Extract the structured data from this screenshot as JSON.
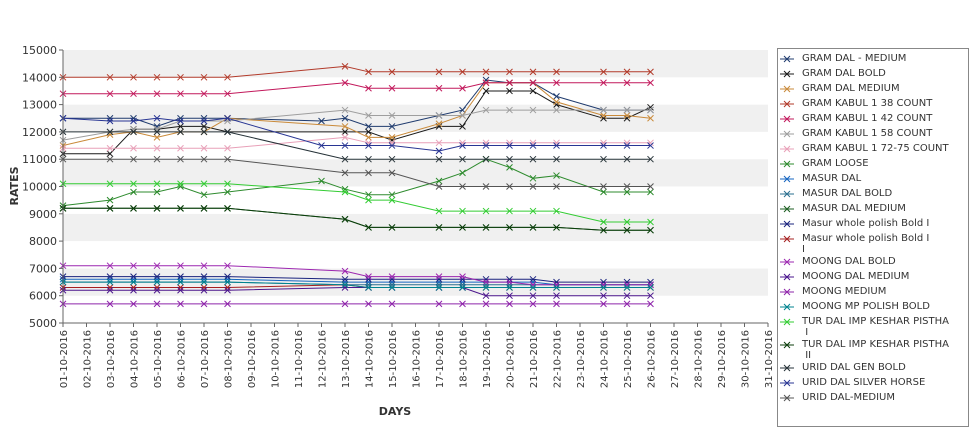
{
  "chart_data": {
    "type": "line",
    "title": "",
    "xlabel": "DAYS",
    "ylabel": "RATES",
    "ylim": [
      5000,
      15000
    ],
    "yticks": [
      5000,
      6000,
      7000,
      8000,
      9000,
      10000,
      11000,
      12000,
      13000,
      14000,
      15000
    ],
    "grid": "alternating horizontal bands",
    "legend_position": "right",
    "x": [
      "01-10-2016",
      "02-10-2016",
      "03-10-2016",
      "04-10-2016",
      "05-10-2016",
      "06-10-2016",
      "07-10-2016",
      "08-10-2016",
      "09-10-2016",
      "10-10-2016",
      "11-10-2016",
      "12-10-2016",
      "13-10-2016",
      "14-10-2016",
      "15-10-2016",
      "16-10-2016",
      "17-10-2016",
      "18-10-2016",
      "19-10-2016",
      "20-10-2016",
      "21-10-2016",
      "22-10-2016",
      "23-10-2016",
      "24-10-2016",
      "25-10-2016",
      "26-10-2016",
      "27-10-2016",
      "28-10-2016",
      "29-10-2016",
      "30-10-2016",
      "31-10-2016"
    ],
    "series": [
      {
        "name": "GRAM DAL - MEDIUM",
        "color": "#1f3b6e",
        "values": [
          12500,
          null,
          12500,
          12500,
          12200,
          12500,
          12500,
          12500,
          null,
          null,
          null,
          12400,
          12500,
          12200,
          12200,
          null,
          12600,
          12800,
          13900,
          13800,
          13800,
          13300,
          null,
          12800,
          12800,
          12800,
          null,
          null,
          null,
          null,
          null
        ]
      },
      {
        "name": "GRAM DAL BOLD",
        "color": "#1a1a1a",
        "values": [
          11200,
          null,
          11200,
          12100,
          12100,
          12200,
          12200,
          12000,
          null,
          null,
          null,
          null,
          12000,
          12000,
          11700,
          null,
          12200,
          12200,
          13500,
          13500,
          13500,
          13000,
          null,
          12500,
          12500,
          12900,
          null,
          null,
          null,
          null,
          null
        ]
      },
      {
        "name": "GRAM DAL MEDIUM",
        "color": "#c98a3a",
        "values": [
          11500,
          null,
          11900,
          12000,
          11800,
          12000,
          12000,
          12500,
          null,
          null,
          null,
          null,
          12200,
          11800,
          11800,
          null,
          12300,
          12600,
          13800,
          13800,
          13800,
          13100,
          null,
          12600,
          12600,
          12500,
          null,
          null,
          null,
          null,
          null
        ]
      },
      {
        "name": "GRAM KABUL 1 38 COUNT",
        "color": "#b23a2a",
        "values": [
          14000,
          null,
          14000,
          14000,
          14000,
          14000,
          14000,
          14000,
          null,
          null,
          null,
          null,
          14400,
          14200,
          14200,
          null,
          14200,
          14200,
          14200,
          14200,
          14200,
          14200,
          null,
          14200,
          14200,
          14200,
          null,
          null,
          null,
          null,
          null
        ]
      },
      {
        "name": "GRAM KABUL 1 42 COUNT",
        "color": "#c2185b",
        "values": [
          13400,
          null,
          13400,
          13400,
          13400,
          13400,
          13400,
          13400,
          null,
          null,
          null,
          null,
          13800,
          13600,
          13600,
          null,
          13600,
          13600,
          13800,
          13800,
          13800,
          13800,
          null,
          13800,
          13800,
          13800,
          null,
          null,
          null,
          null,
          null
        ]
      },
      {
        "name": "GRAM KABUL 1 58 COUNT",
        "color": "#9e9e9e",
        "values": [
          11700,
          null,
          12000,
          12100,
          12100,
          12400,
          12400,
          12400,
          null,
          null,
          null,
          null,
          12800,
          12600,
          12600,
          null,
          12600,
          12600,
          12800,
          12800,
          12800,
          12800,
          null,
          12800,
          12800,
          12800,
          null,
          null,
          null,
          null,
          null
        ]
      },
      {
        "name": "GRAM KABUL 1 72-75 COUNT",
        "color": "#e8a0b8",
        "values": [
          11400,
          null,
          11400,
          11400,
          11400,
          11400,
          11400,
          11400,
          null,
          null,
          null,
          null,
          11800,
          11600,
          11600,
          null,
          11600,
          11600,
          11600,
          11600,
          11600,
          11600,
          null,
          11600,
          11600,
          11600,
          null,
          null,
          null,
          null,
          null
        ]
      },
      {
        "name": "GRAM LOOSE",
        "color": "#2e8b2e",
        "values": [
          9300,
          null,
          9500,
          9800,
          9800,
          10000,
          9700,
          9800,
          null,
          null,
          null,
          10200,
          9900,
          9700,
          9700,
          null,
          10200,
          10500,
          11000,
          10700,
          10300,
          10400,
          null,
          9800,
          9800,
          9800,
          null,
          null,
          null,
          null,
          null
        ]
      },
      {
        "name": "MASUR DAL",
        "color": "#1565c0",
        "values": [
          6600,
          null,
          6600,
          6600,
          6600,
          6600,
          6600,
          6600,
          null,
          null,
          null,
          null,
          6500,
          6500,
          6500,
          null,
          6500,
          6500,
          6500,
          6500,
          6500,
          6400,
          null,
          6400,
          6400,
          6400,
          null,
          null,
          null,
          null,
          null
        ]
      },
      {
        "name": "MASUR DAL BOLD",
        "color": "#2a6f8f",
        "values": [
          6500,
          null,
          6500,
          6500,
          6500,
          6500,
          6500,
          6500,
          null,
          null,
          null,
          null,
          6400,
          6400,
          6400,
          null,
          6400,
          6400,
          6400,
          6400,
          6400,
          6400,
          null,
          6400,
          6400,
          6400,
          null,
          null,
          null,
          null,
          null
        ]
      },
      {
        "name": "MASUR DAL MEDIUM",
        "color": "#1b5e20",
        "values": [
          9200,
          null,
          9200,
          9200,
          9200,
          9200,
          9200,
          9200,
          null,
          null,
          null,
          null,
          8800,
          8500,
          8500,
          null,
          8500,
          8500,
          8500,
          8500,
          8500,
          8500,
          null,
          8400,
          8400,
          8400,
          null,
          null,
          null,
          null,
          null
        ]
      },
      {
        "name": "Masur whole polish Bold I",
        "color": "#1a237e",
        "values": [
          6700,
          null,
          6700,
          6700,
          6700,
          6700,
          6700,
          6700,
          null,
          null,
          null,
          null,
          6600,
          6600,
          6600,
          null,
          6600,
          6600,
          6600,
          6600,
          6600,
          6500,
          null,
          6500,
          6500,
          6500,
          null,
          null,
          null,
          null,
          null
        ]
      },
      {
        "name": "Masur whole polish Bold I\nI",
        "color": "#a52020",
        "values": [
          6300,
          null,
          6300,
          6300,
          6300,
          6300,
          6300,
          6300,
          null,
          null,
          null,
          null,
          6400,
          6300,
          6300,
          null,
          6300,
          6300,
          6300,
          6300,
          6300,
          6300,
          null,
          6300,
          6300,
          6300,
          null,
          null,
          null,
          null,
          null
        ]
      },
      {
        "name": "MOONG DAL BOLD",
        "color": "#9c27b0",
        "values": [
          7100,
          null,
          7100,
          7100,
          7100,
          7100,
          7100,
          7100,
          null,
          null,
          null,
          null,
          6900,
          6700,
          6700,
          null,
          6700,
          6700,
          6500,
          6500,
          6400,
          6400,
          null,
          6400,
          6400,
          6400,
          null,
          null,
          null,
          null,
          null
        ]
      },
      {
        "name": "MOONG DAL MEDIUM",
        "color": "#4a148c",
        "values": [
          6200,
          null,
          6200,
          6200,
          6200,
          6200,
          6200,
          6200,
          null,
          null,
          null,
          null,
          6300,
          6300,
          6300,
          null,
          6300,
          6300,
          6000,
          6000,
          6000,
          6000,
          null,
          6000,
          6000,
          6000,
          null,
          null,
          null,
          null,
          null
        ]
      },
      {
        "name": "MOONG MEDIUM",
        "color": "#8e24aa",
        "values": [
          5700,
          null,
          5700,
          5700,
          5700,
          5700,
          5700,
          5700,
          null,
          null,
          null,
          null,
          5700,
          5700,
          5700,
          null,
          5700,
          5700,
          5700,
          5700,
          5700,
          5700,
          null,
          5700,
          5700,
          5700,
          null,
          null,
          null,
          null,
          null
        ]
      },
      {
        "name": "MOONG MP POLISH BOLD",
        "color": "#00838f",
        "values": [
          6500,
          null,
          6500,
          6500,
          6500,
          6500,
          6500,
          6500,
          null,
          null,
          null,
          null,
          6400,
          6300,
          6300,
          null,
          6300,
          6300,
          6300,
          6300,
          6300,
          6300,
          null,
          6300,
          6300,
          6300,
          null,
          null,
          null,
          null,
          null
        ]
      },
      {
        "name": "TUR DAL IMP KESHAR PISTHA\n I",
        "color": "#33cc33",
        "values": [
          10100,
          null,
          10100,
          10100,
          10100,
          10100,
          10100,
          10100,
          null,
          null,
          null,
          null,
          9800,
          9500,
          9500,
          null,
          9100,
          9100,
          9100,
          9100,
          9100,
          9100,
          null,
          8700,
          8700,
          8700,
          null,
          null,
          null,
          null,
          null
        ]
      },
      {
        "name": "TUR DAL IMP KESHAR PISTHA\n II",
        "color": "#0b3d0b",
        "values": [
          9200,
          null,
          9200,
          9200,
          9200,
          9200,
          9200,
          9200,
          null,
          null,
          null,
          null,
          8800,
          8500,
          8500,
          null,
          8500,
          8500,
          8500,
          8500,
          8500,
          8500,
          null,
          8400,
          8400,
          8400,
          null,
          null,
          null,
          null,
          null
        ]
      },
      {
        "name": "URID DAL GEN BOLD",
        "color": "#263238",
        "values": [
          12000,
          null,
          12000,
          12000,
          12000,
          12000,
          12000,
          12000,
          null,
          null,
          null,
          null,
          11000,
          11000,
          11000,
          null,
          11000,
          11000,
          11000,
          11000,
          11000,
          11000,
          null,
          11000,
          11000,
          11000,
          null,
          null,
          null,
          null,
          null
        ]
      },
      {
        "name": "URID DAL SILVER HORSE",
        "color": "#283593",
        "values": [
          12500,
          null,
          12400,
          12400,
          12500,
          12400,
          12400,
          12500,
          null,
          null,
          null,
          11500,
          11500,
          11500,
          11500,
          null,
          11300,
          11500,
          11500,
          11500,
          11500,
          11500,
          null,
          11500,
          11500,
          11500,
          null,
          null,
          null,
          null,
          null
        ]
      },
      {
        "name": "URID DAL-MEDIUM",
        "color": "#555555",
        "values": [
          11000,
          null,
          11000,
          11000,
          11000,
          11000,
          11000,
          11000,
          null,
          null,
          null,
          null,
          10500,
          10500,
          10500,
          null,
          10000,
          10000,
          10000,
          10000,
          10000,
          10000,
          null,
          10000,
          10000,
          10000,
          null,
          null,
          null,
          null,
          null
        ]
      }
    ]
  }
}
